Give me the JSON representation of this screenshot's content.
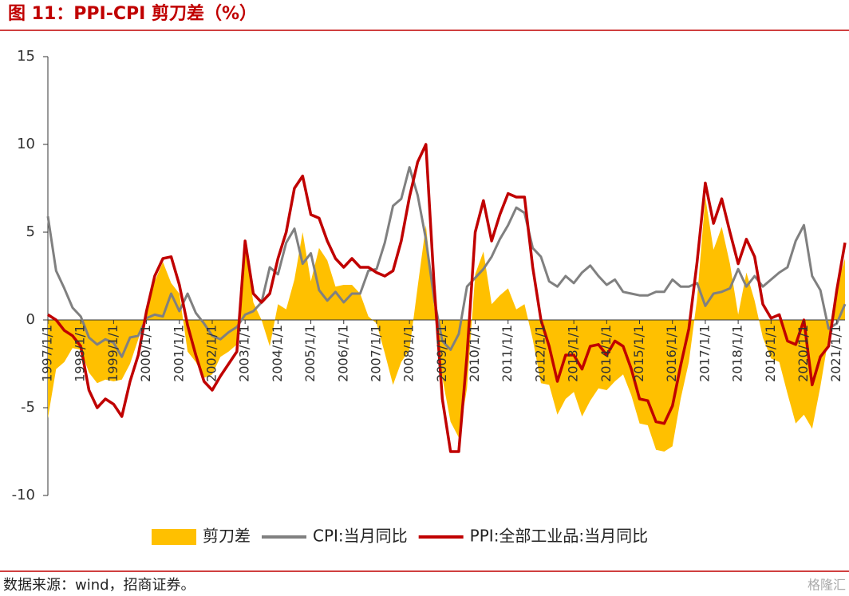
{
  "chart_data": {
    "type": "line",
    "title": "图 11：PPI-CPI 剪刀差（%）",
    "source": "数据来源：wind，招商证券。",
    "watermark": "格隆汇",
    "categories": [
      "1997/1/1",
      null,
      null,
      null,
      "1998/1/1",
      null,
      null,
      null,
      "1999/1/1",
      null,
      null,
      null,
      "2000/1/1",
      null,
      null,
      null,
      "2001/1/1",
      null,
      null,
      null,
      "2002/1/1",
      null,
      null,
      null,
      "2003/1/1",
      null,
      null,
      null,
      "2004/1/1",
      null,
      null,
      null,
      "2005/1/1",
      null,
      null,
      null,
      "2006/1/1",
      null,
      null,
      null,
      "2007/1/1",
      null,
      null,
      null,
      "2008/1/1",
      null,
      null,
      null,
      "2009/1/1",
      null,
      null,
      null,
      "2010/1/1",
      null,
      null,
      null,
      "2011/1/1",
      null,
      null,
      null,
      "2012/1/1",
      null,
      null,
      null,
      "2013/1/1",
      null,
      null,
      null,
      "2014/1/1",
      null,
      null,
      null,
      "2015/1/1",
      null,
      null,
      null,
      "2016/1/1",
      null,
      null,
      null,
      "2017/1/1",
      null,
      null,
      null,
      "2018/1/1",
      null,
      null,
      null,
      "2019/1/1",
      null,
      null,
      null,
      "2020/1/1",
      null,
      null,
      null,
      "2021/1/1",
      null
    ],
    "series": [
      {
        "name": "剪刀差",
        "kind": "area",
        "color": "#FFC000",
        "values": [
          -5.6,
          -2.8,
          -2.4,
          -1.6,
          -1.7,
          -3.0,
          -3.6,
          -3.4,
          -3.5,
          -3.4,
          -2.5,
          -1.1,
          0.4,
          2.2,
          3.3,
          2.1,
          1.5,
          -1.8,
          -2.4,
          -3.3,
          -3.1,
          -2.1,
          -1.8,
          -1.4,
          4.2,
          1.0,
          0.0,
          -1.5,
          0.9,
          0.6,
          2.3,
          5.0,
          2.2,
          4.1,
          3.4,
          1.9,
          2.0,
          2.0,
          1.5,
          0.2,
          -0.2,
          -1.9,
          -3.7,
          -2.4,
          -1.7,
          1.9,
          5.4,
          0.8,
          -3.3,
          -5.8,
          -6.7,
          -3.9,
          2.6,
          3.9,
          0.9,
          1.4,
          1.8,
          0.6,
          0.9,
          -1.1,
          -3.6,
          -3.7,
          -5.4,
          -4.5,
          -4.1,
          -5.5,
          -4.6,
          -3.9,
          -4.0,
          -3.5,
          -3.1,
          -4.3,
          -5.9,
          -6.0,
          -7.4,
          -7.5,
          -7.2,
          -4.5,
          -2.4,
          1.2,
          7.0,
          4.0,
          5.3,
          3.2,
          0.3,
          2.7,
          1.1,
          -1.0,
          -2.2,
          -2.4,
          -4.2,
          -5.9,
          -5.4,
          -6.2,
          -3.8,
          -1.0,
          1.9,
          3.5
        ]
      },
      {
        "name": "CPI:当月同比",
        "kind": "line",
        "color": "#808080",
        "values": [
          5.9,
          2.8,
          1.8,
          0.7,
          0.2,
          -1.0,
          -1.4,
          -1.1,
          -1.3,
          -2.1,
          -1.0,
          -0.9,
          0.1,
          0.3,
          0.2,
          1.5,
          0.5,
          1.5,
          0.4,
          -0.2,
          -0.9,
          -1.1,
          -0.7,
          -0.4,
          0.3,
          0.5,
          1.0,
          3.0,
          2.6,
          4.4,
          5.2,
          3.2,
          3.8,
          1.7,
          1.1,
          1.6,
          1.0,
          1.5,
          1.5,
          2.8,
          2.9,
          4.4,
          6.5,
          6.9,
          8.7,
          7.1,
          4.6,
          1.2,
          -1.2,
          -1.7,
          -0.8,
          1.9,
          2.4,
          2.9,
          3.6,
          4.6,
          5.4,
          6.4,
          6.1,
          4.1,
          3.6,
          2.2,
          1.9,
          2.5,
          2.1,
          2.7,
          3.1,
          2.5,
          2.0,
          2.3,
          1.6,
          1.5,
          1.4,
          1.4,
          1.6,
          1.6,
          2.3,
          1.9,
          1.9,
          2.1,
          0.8,
          1.5,
          1.6,
          1.8,
          2.9,
          1.9,
          2.5,
          1.9,
          2.3,
          2.7,
          3.0,
          4.5,
          5.4,
          2.5,
          1.7,
          -0.5,
          -0.2,
          0.9
        ]
      },
      {
        "name": "PPI:全部工业品:当月同比",
        "kind": "line",
        "color": "#C00000",
        "values": [
          0.3,
          0.0,
          -0.6,
          -0.9,
          -1.5,
          -4.0,
          -5.0,
          -4.5,
          -4.8,
          -5.5,
          -3.5,
          -2.0,
          0.5,
          2.5,
          3.5,
          3.6,
          2.0,
          -0.3,
          -2.0,
          -3.5,
          -4.0,
          -3.2,
          -2.5,
          -1.8,
          4.5,
          1.5,
          1.0,
          1.5,
          3.5,
          5.0,
          7.5,
          8.2,
          6.0,
          5.8,
          4.5,
          3.5,
          3.0,
          3.5,
          3.0,
          3.0,
          2.7,
          2.5,
          2.8,
          4.5,
          7.0,
          9.0,
          10.0,
          2.0,
          -4.5,
          -7.5,
          -7.5,
          -2.0,
          5.0,
          6.8,
          4.5,
          6.0,
          7.2,
          7.0,
          7.0,
          3.0,
          0.0,
          -1.5,
          -3.5,
          -2.0,
          -2.0,
          -2.8,
          -1.5,
          -1.4,
          -2.0,
          -1.2,
          -1.5,
          -2.8,
          -4.5,
          -4.6,
          -5.8,
          -5.9,
          -4.9,
          -2.6,
          -0.5,
          3.3,
          7.8,
          5.5,
          6.9,
          5.0,
          3.2,
          4.6,
          3.6,
          0.9,
          0.1,
          0.3,
          -1.2,
          -1.4,
          0.0,
          -3.7,
          -2.1,
          -1.5,
          1.7,
          4.4
        ]
      }
    ],
    "ylim": [
      -10,
      15
    ],
    "yticks": [
      -10,
      -5,
      0,
      5,
      10,
      15
    ]
  }
}
